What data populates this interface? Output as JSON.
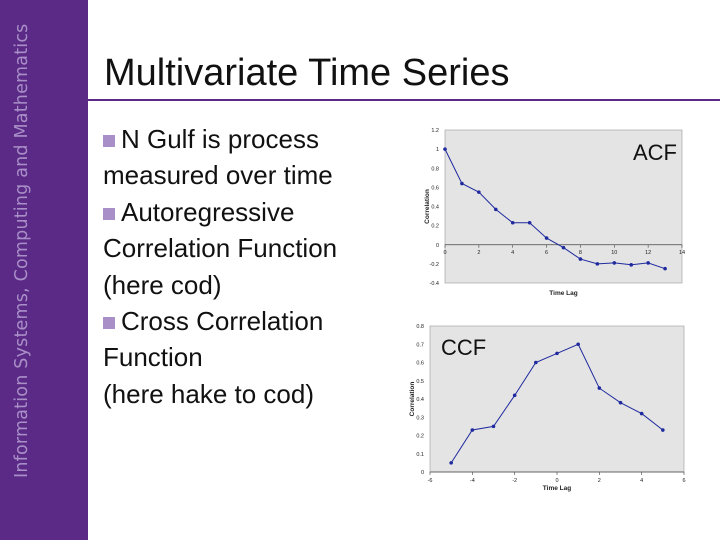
{
  "sidebar": {
    "text": "Information Systems, Computing and Mathematics"
  },
  "slide": {
    "title": "Multivariate Time Series",
    "bullets": [
      {
        "lines": [
          "N Gulf is process",
          "measured over time"
        ]
      },
      {
        "lines": [
          "Autoregressive",
          "Correlation Function",
          "(here cod)"
        ]
      },
      {
        "lines": [
          "Cross Correlation",
          "Function",
          "(here hake to cod)"
        ]
      }
    ]
  },
  "colors": {
    "sidebar": "#5b2a86",
    "bullet": "#a98fc8",
    "plot_bg": "#e4e4e4",
    "series": "#1f2a9e"
  },
  "chart_data": [
    {
      "type": "line",
      "label": "ACF",
      "xlabel": "Time Lag",
      "ylabel": "Correlation",
      "xlim": [
        0,
        14
      ],
      "ylim": [
        -0.4,
        1.2
      ],
      "xticks": [
        0,
        2,
        4,
        6,
        8,
        10,
        12,
        14
      ],
      "xtick_labels": [
        "0",
        "2",
        "4",
        "6",
        "8",
        "10",
        "12",
        "14"
      ],
      "yticks": [
        -0.4,
        -0.2,
        0,
        0.2,
        0.4,
        0.6,
        0.8,
        1,
        1.2
      ],
      "ytick_labels": [
        "-0.4",
        "-0.2",
        "0",
        "0.2",
        "0.4",
        "0.6",
        "0.8",
        "1",
        "1.2"
      ],
      "series": [
        {
          "x": [
            0,
            1,
            2,
            3,
            4,
            5,
            6,
            7,
            8,
            9,
            10,
            11,
            12,
            13
          ],
          "values": [
            1.0,
            0.64,
            0.55,
            0.37,
            0.23,
            0.23,
            0.07,
            -0.03,
            -0.15,
            -0.2,
            -0.19,
            -0.21,
            -0.19,
            -0.25
          ]
        }
      ],
      "grid": false
    },
    {
      "type": "line",
      "label": "CCF",
      "xlabel": "Time Lag",
      "ylabel": "Correlation",
      "xlim": [
        -6,
        6
      ],
      "ylim": [
        0,
        0.8
      ],
      "xticks": [
        -6,
        -4,
        -2,
        0,
        2,
        4,
        6
      ],
      "xtick_labels": [
        "-6",
        "-4",
        "-2",
        "0",
        "2",
        "4",
        "6"
      ],
      "yticks": [
        0,
        0.1,
        0.2,
        0.3,
        0.4,
        0.5,
        0.6,
        0.7,
        0.8
      ],
      "ytick_labels": [
        "0",
        "0.1",
        "0.2",
        "0.3",
        "0.4",
        "0.5",
        "0.6",
        "0.7",
        "0.8"
      ],
      "series": [
        {
          "x": [
            -5,
            -4,
            -3,
            -2,
            -1,
            0,
            1,
            2,
            3,
            4,
            5
          ],
          "values": [
            0.05,
            0.23,
            0.25,
            0.42,
            0.6,
            0.65,
            0.7,
            0.46,
            0.38,
            0.32,
            0.23
          ]
        }
      ],
      "grid": false
    }
  ]
}
